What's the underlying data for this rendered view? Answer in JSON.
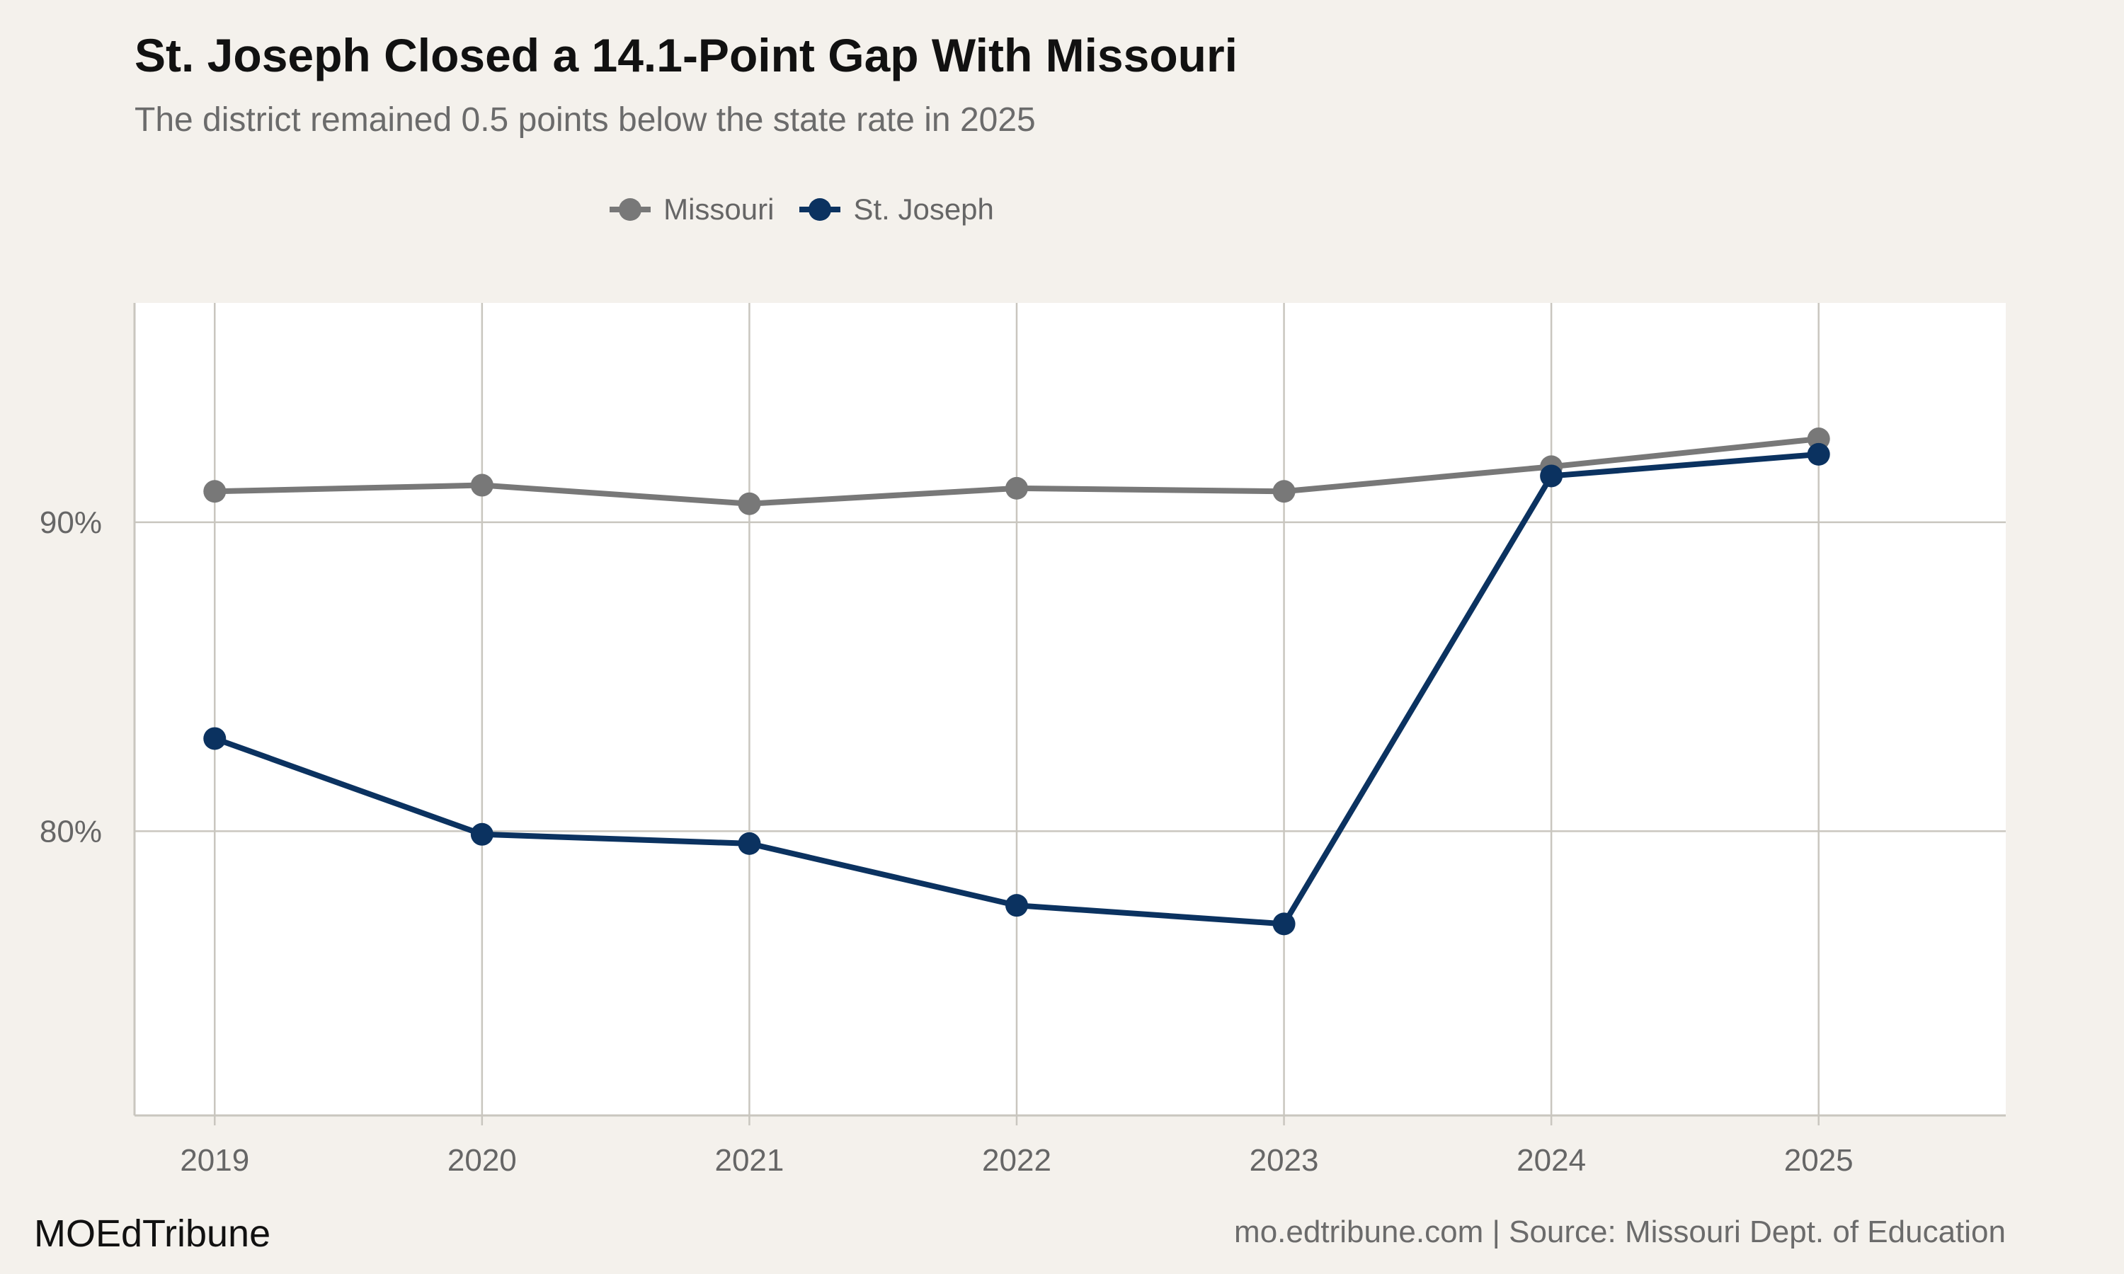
{
  "header": {
    "title": "St. Joseph Closed a 14.1-Point Gap With Missouri",
    "subtitle": "The district remained 0.5 points below the state rate in 2025"
  },
  "footer": {
    "brand": "MOEdTribune",
    "caption": "mo.edtribune.com | Source: Missouri Dept. of Education"
  },
  "colors": {
    "missouri": "#787878",
    "st_joseph": "#0b3260",
    "background": "#f4f1ec",
    "panel": "#ffffff",
    "grid": "#c9c6bf"
  },
  "chart_data": {
    "type": "line",
    "x": [
      2019,
      2020,
      2021,
      2022,
      2023,
      2024,
      2025
    ],
    "x_tick_labels": [
      "2019",
      "2020",
      "2021",
      "2022",
      "2023",
      "2024",
      "2025"
    ],
    "series": [
      {
        "name": "Missouri",
        "color": "#787878",
        "values": [
          91.0,
          91.2,
          90.6,
          91.1,
          91.0,
          91.8,
          92.7
        ]
      },
      {
        "name": "St. Joseph",
        "color": "#0b3260",
        "values": [
          83.0,
          79.9,
          79.6,
          77.6,
          77.0,
          91.5,
          92.2
        ]
      }
    ],
    "y_ticks": [
      80,
      90
    ],
    "y_tick_labels": [
      "80%",
      "90%"
    ],
    "ylim": [
      70.8,
      97.1
    ],
    "xlim": [
      2018.7,
      2025.7
    ],
    "legend_position": "top",
    "grid": true
  }
}
